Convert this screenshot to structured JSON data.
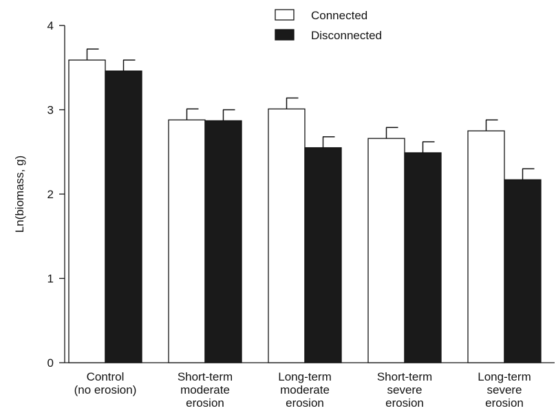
{
  "chart_data": {
    "type": "bar",
    "title": "",
    "ylabel": "Ln(biomass, g)",
    "xlabel": "",
    "ylim": [
      0,
      4
    ],
    "yticks": [
      0,
      1,
      2,
      3,
      4
    ],
    "grid": false,
    "legend_position": "top-center",
    "categories": [
      [
        "Control",
        "(no erosion)"
      ],
      [
        "Short-term",
        "moderate",
        "erosion"
      ],
      [
        "Long-term",
        "moderate",
        "erosion"
      ],
      [
        "Short-term",
        "severe",
        "erosion"
      ],
      [
        "Long-term",
        "severe",
        "erosion"
      ]
    ],
    "series": [
      {
        "name": "Connected",
        "color": "#ffffff",
        "values": [
          3.59,
          2.88,
          3.01,
          2.66,
          2.75
        ],
        "errors": [
          0.13,
          0.13,
          0.13,
          0.13,
          0.13
        ]
      },
      {
        "name": "Disconnected",
        "color": "#1a1a1a",
        "values": [
          3.46,
          2.87,
          2.55,
          2.49,
          2.17
        ],
        "errors": [
          0.13,
          0.13,
          0.13,
          0.13,
          0.13
        ]
      }
    ]
  }
}
